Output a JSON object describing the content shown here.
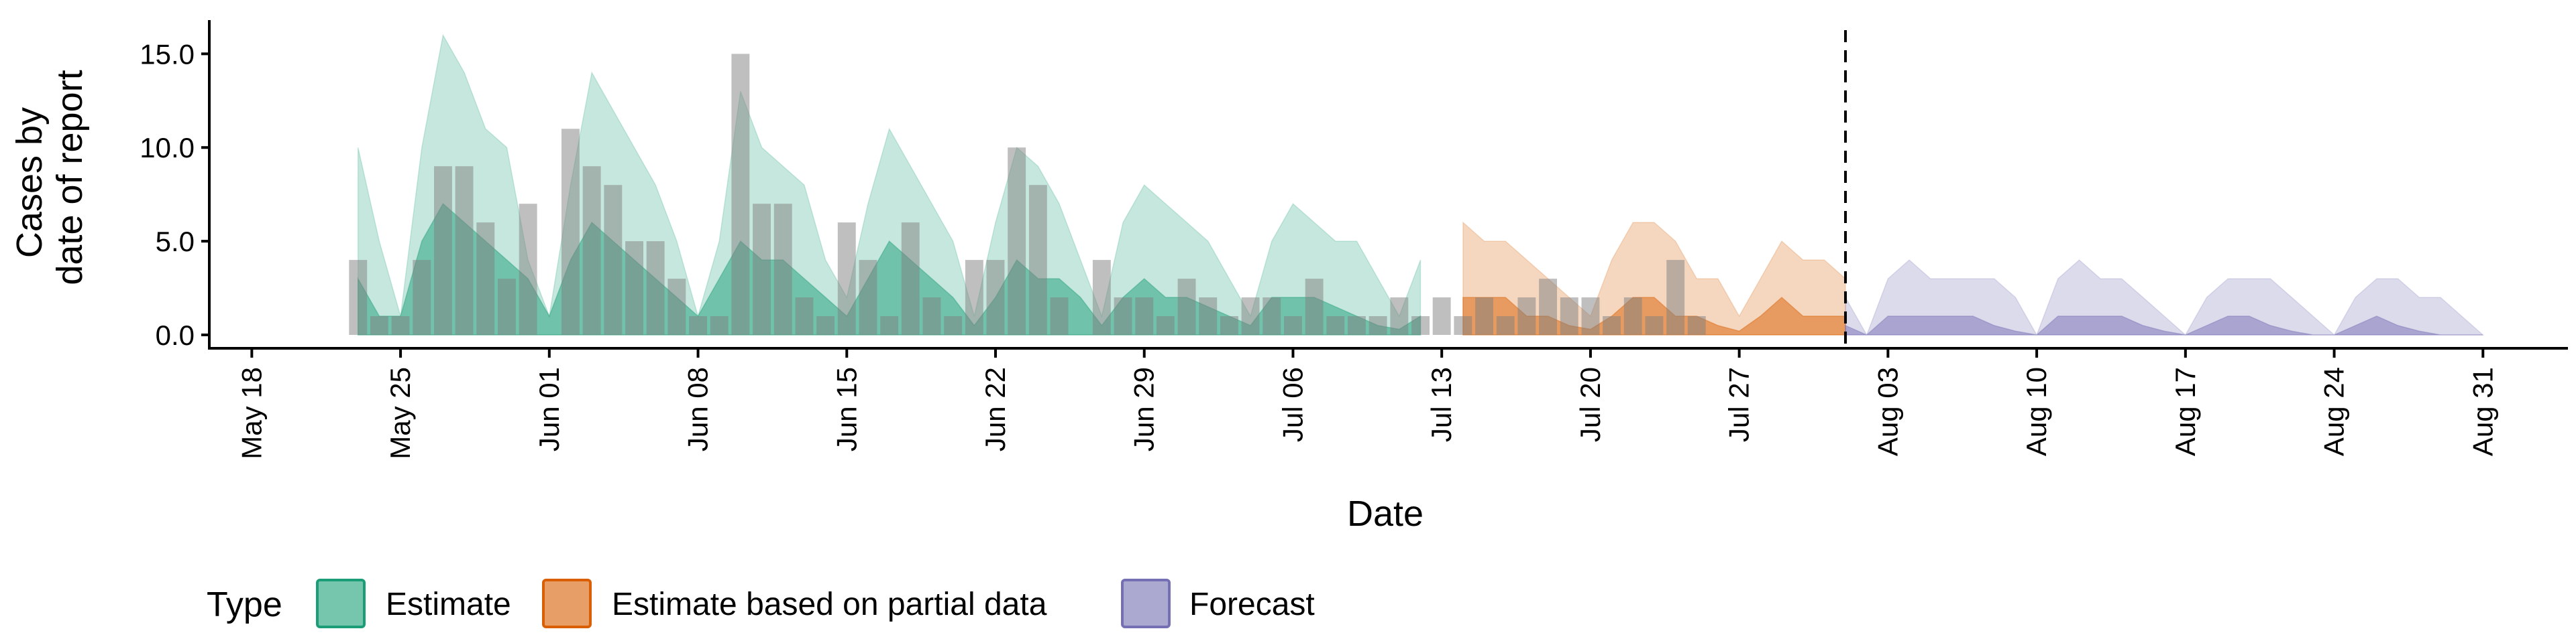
{
  "chart_data": {
    "type": "area",
    "xlabel": "Date",
    "ylabel_lines": [
      "Cases by",
      "date of report"
    ],
    "x_range": [
      "2020-05-16",
      "2020-09-04"
    ],
    "ylim": [
      0,
      16.8
    ],
    "y_ticks": [
      0,
      5,
      10,
      15
    ],
    "y_tick_labels": [
      "0.0",
      "5.0",
      "10.0",
      "15.0"
    ],
    "x_ticks": [
      {
        "date": "2020-05-18",
        "label": "May 18"
      },
      {
        "date": "2020-05-25",
        "label": "May 25"
      },
      {
        "date": "2020-06-01",
        "label": "Jun 01"
      },
      {
        "date": "2020-06-08",
        "label": "Jun 08"
      },
      {
        "date": "2020-06-15",
        "label": "Jun 15"
      },
      {
        "date": "2020-06-22",
        "label": "Jun 22"
      },
      {
        "date": "2020-06-29",
        "label": "Jun 29"
      },
      {
        "date": "2020-07-06",
        "label": "Jul 06"
      },
      {
        "date": "2020-07-13",
        "label": "Jul 13"
      },
      {
        "date": "2020-07-20",
        "label": "Jul 20"
      },
      {
        "date": "2020-07-27",
        "label": "Jul 27"
      },
      {
        "date": "2020-08-03",
        "label": "Aug 03"
      },
      {
        "date": "2020-08-10",
        "label": "Aug 10"
      },
      {
        "date": "2020-08-17",
        "label": "Aug 17"
      },
      {
        "date": "2020-08-24",
        "label": "Aug 24"
      },
      {
        "date": "2020-08-31",
        "label": "Aug 31"
      }
    ],
    "vline_date": "2020-08-01",
    "grid": false,
    "legend_position": "bottom-left",
    "legend_title": "Type",
    "observed_cases": {
      "start_date": "2020-05-23",
      "values": [
        4,
        1,
        1,
        4,
        9,
        9,
        6,
        3,
        7,
        0,
        11,
        9,
        8,
        5,
        5,
        3,
        1,
        1,
        15,
        7,
        7,
        2,
        1,
        6,
        4,
        1,
        6,
        2,
        1,
        4,
        4,
        10,
        8,
        2,
        0,
        4,
        2,
        2,
        1,
        3,
        2,
        1,
        2,
        2,
        1,
        3,
        1,
        1,
        1,
        2,
        1,
        2,
        1,
        2,
        1,
        2,
        3,
        2,
        2,
        1,
        2,
        1,
        4,
        1
      ]
    },
    "series": [
      {
        "name": "Estimate",
        "color": "#1B9E77",
        "start_date": "2020-05-23",
        "upper90": [
          10,
          5,
          1,
          10,
          16,
          14,
          11,
          10,
          4,
          1,
          8,
          14,
          12,
          10,
          8,
          5,
          1,
          5,
          13,
          10,
          9,
          8,
          4,
          2,
          7,
          11,
          9,
          7,
          5,
          1,
          6,
          10,
          9,
          7,
          4,
          1,
          6,
          8,
          7,
          6,
          5,
          3,
          1,
          5,
          7,
          6,
          5,
          5,
          3,
          1,
          4
        ],
        "upper50": [
          3,
          1,
          1,
          5,
          7,
          6,
          5,
          4,
          3,
          1,
          4,
          6,
          5,
          4,
          3,
          2,
          1,
          3,
          5,
          4,
          4,
          3,
          2,
          1,
          3,
          5,
          4,
          3,
          2,
          0.5,
          2,
          4,
          3,
          3,
          2,
          0.5,
          2,
          3,
          2,
          2,
          1.5,
          1,
          0.5,
          2,
          2,
          2,
          1.5,
          1,
          0.5,
          0.3,
          1
        ]
      },
      {
        "name": "Estimate based on partial data",
        "color": "#D95F02",
        "start_date": "2020-07-14",
        "upper90": [
          6,
          5,
          5,
          4,
          3,
          2,
          1,
          4,
          6,
          6,
          5,
          3,
          3,
          1,
          3,
          5,
          4,
          4,
          3
        ],
        "upper50": [
          2,
          2,
          2,
          1,
          1,
          0.5,
          0.3,
          1,
          2,
          2,
          1,
          1,
          0.5,
          0.2,
          1,
          2,
          1,
          1,
          1
        ]
      },
      {
        "name": "Forecast",
        "color": "#7570B3",
        "start_date": "2020-08-01",
        "upper90": [
          2,
          0,
          3,
          4,
          3,
          3,
          3,
          3,
          2,
          0,
          3,
          4,
          3,
          3,
          2,
          1,
          0,
          2,
          3,
          3,
          3,
          2,
          1,
          0,
          2,
          3,
          3,
          2,
          2,
          1,
          0
        ],
        "upper50": [
          0.5,
          0,
          1,
          1,
          1,
          1,
          1,
          0.5,
          0.2,
          0,
          1,
          1,
          1,
          1,
          0.5,
          0.2,
          0,
          0.5,
          1,
          1,
          0.5,
          0.2,
          0,
          0,
          0.5,
          1,
          0.5,
          0.2,
          0,
          0,
          0
        ]
      }
    ]
  }
}
